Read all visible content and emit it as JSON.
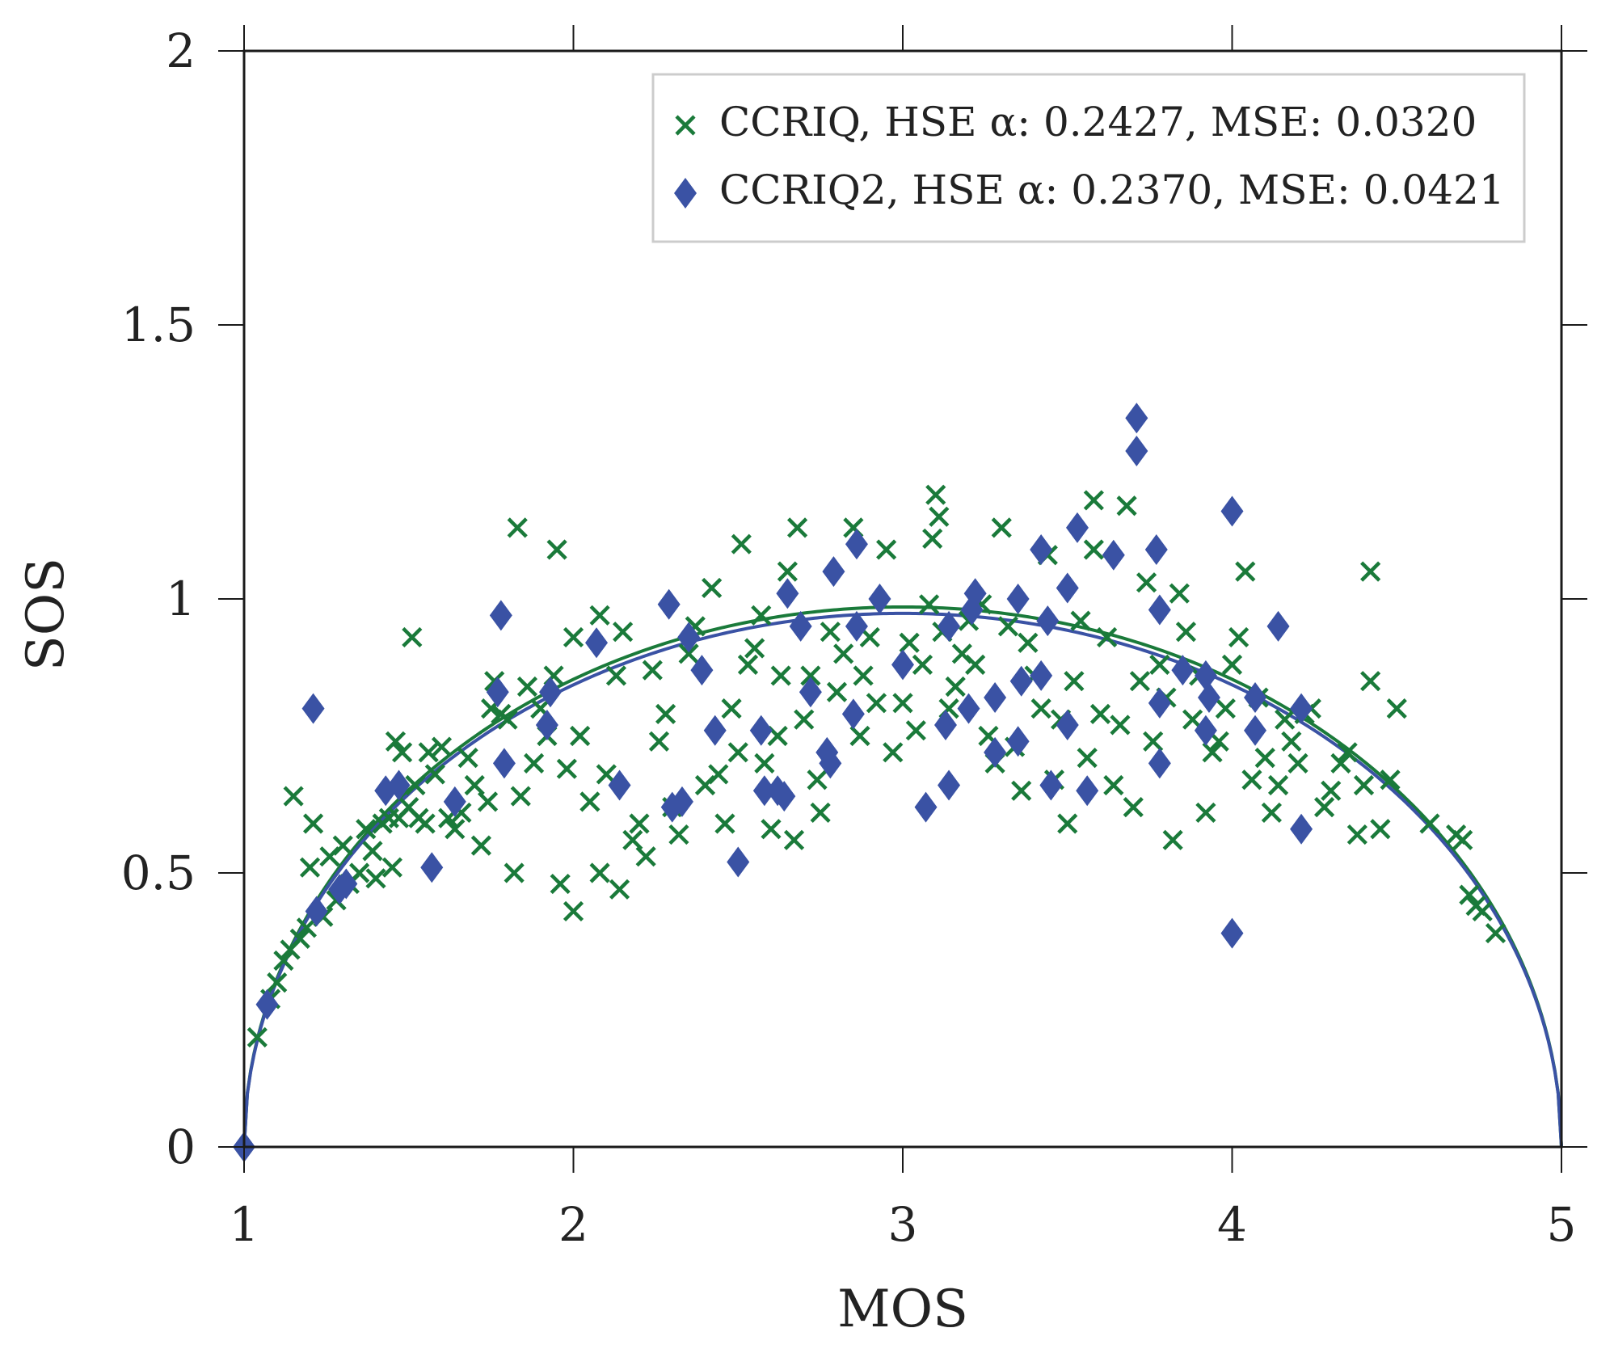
{
  "chart_data": {
    "type": "scatter",
    "title": "",
    "xlabel": "MOS",
    "ylabel": "SOS",
    "xlim": [
      1,
      5
    ],
    "ylim": [
      0,
      2
    ],
    "x_ticks": [
      1,
      2,
      3,
      4,
      5
    ],
    "x_tick_labels": [
      "1",
      "2",
      "3",
      "4",
      "5"
    ],
    "y_ticks": [
      0,
      0.5,
      1,
      1.5,
      2
    ],
    "y_tick_labels": [
      "0",
      "0.5",
      "1",
      "1.5",
      "2"
    ],
    "grid": false,
    "legend_position": "top-right",
    "series": [
      {
        "name": "CCRIQ, HSE α: 0.2427, MSE: 0.0320",
        "legend_label": "CCRIQ, HSE α: 0.2427, MSE: 0.0320",
        "marker": "x",
        "color": "#1a7a3a",
        "fit_alpha": 0.2427,
        "points": [
          [
            1.04,
            0.2
          ],
          [
            1.08,
            0.27
          ],
          [
            1.1,
            0.3
          ],
          [
            1.12,
            0.34
          ],
          [
            1.14,
            0.36
          ],
          [
            1.15,
            0.64
          ],
          [
            1.17,
            0.38
          ],
          [
            1.19,
            0.4
          ],
          [
            1.2,
            0.51
          ],
          [
            1.21,
            0.59
          ],
          [
            1.24,
            0.42
          ],
          [
            1.26,
            0.53
          ],
          [
            1.28,
            0.45
          ],
          [
            1.3,
            0.55
          ],
          [
            1.32,
            0.48
          ],
          [
            1.35,
            0.5
          ],
          [
            1.37,
            0.58
          ],
          [
            1.39,
            0.54
          ],
          [
            1.4,
            0.49
          ],
          [
            1.42,
            0.59
          ],
          [
            1.44,
            0.6
          ],
          [
            1.45,
            0.51
          ],
          [
            1.46,
            0.74
          ],
          [
            1.47,
            0.6
          ],
          [
            1.48,
            0.72
          ],
          [
            1.5,
            0.62
          ],
          [
            1.51,
            0.93
          ],
          [
            1.52,
            0.66
          ],
          [
            1.53,
            0.6
          ],
          [
            1.55,
            0.59
          ],
          [
            1.56,
            0.72
          ],
          [
            1.58,
            0.68
          ],
          [
            1.6,
            0.73
          ],
          [
            1.62,
            0.6
          ],
          [
            1.64,
            0.58
          ],
          [
            1.66,
            0.61
          ],
          [
            1.68,
            0.71
          ],
          [
            1.7,
            0.66
          ],
          [
            1.72,
            0.55
          ],
          [
            1.74,
            0.63
          ],
          [
            1.75,
            0.8
          ],
          [
            1.76,
            0.85
          ],
          [
            1.78,
            0.79
          ],
          [
            1.8,
            0.78
          ],
          [
            1.82,
            0.5
          ],
          [
            1.83,
            1.13
          ],
          [
            1.84,
            0.64
          ],
          [
            1.86,
            0.84
          ],
          [
            1.88,
            0.7
          ],
          [
            1.9,
            0.8
          ],
          [
            1.92,
            0.75
          ],
          [
            1.94,
            0.86
          ],
          [
            1.95,
            1.09
          ],
          [
            1.96,
            0.48
          ],
          [
            1.98,
            0.69
          ],
          [
            2.0,
            0.43
          ],
          [
            2.0,
            0.93
          ],
          [
            2.02,
            0.75
          ],
          [
            2.05,
            0.63
          ],
          [
            2.08,
            0.5
          ],
          [
            2.08,
            0.97
          ],
          [
            2.1,
            0.68
          ],
          [
            2.13,
            0.86
          ],
          [
            2.14,
            0.47
          ],
          [
            2.15,
            0.94
          ],
          [
            2.18,
            0.56
          ],
          [
            2.2,
            0.59
          ],
          [
            2.22,
            0.53
          ],
          [
            2.24,
            0.87
          ],
          [
            2.26,
            0.74
          ],
          [
            2.28,
            0.79
          ],
          [
            2.3,
            0.62
          ],
          [
            2.32,
            0.57
          ],
          [
            2.35,
            0.9
          ],
          [
            2.37,
            0.95
          ],
          [
            2.4,
            0.66
          ],
          [
            2.42,
            1.02
          ],
          [
            2.44,
            0.68
          ],
          [
            2.46,
            0.59
          ],
          [
            2.48,
            0.8
          ],
          [
            2.5,
            0.72
          ],
          [
            2.51,
            1.1
          ],
          [
            2.53,
            0.88
          ],
          [
            2.55,
            0.91
          ],
          [
            2.57,
            0.97
          ],
          [
            2.58,
            0.7
          ],
          [
            2.6,
            0.58
          ],
          [
            2.62,
            0.75
          ],
          [
            2.63,
            0.86
          ],
          [
            2.65,
            1.05
          ],
          [
            2.67,
            0.56
          ],
          [
            2.68,
            1.13
          ],
          [
            2.7,
            0.78
          ],
          [
            2.72,
            0.86
          ],
          [
            2.74,
            0.67
          ],
          [
            2.75,
            0.61
          ],
          [
            2.78,
            0.94
          ],
          [
            2.8,
            0.83
          ],
          [
            2.82,
            0.9
          ],
          [
            2.85,
            1.13
          ],
          [
            2.87,
            0.75
          ],
          [
            2.88,
            0.86
          ],
          [
            2.9,
            0.93
          ],
          [
            2.92,
            0.81
          ],
          [
            2.95,
            1.09
          ],
          [
            2.97,
            0.72
          ],
          [
            3.0,
            0.81
          ],
          [
            3.02,
            0.92
          ],
          [
            3.04,
            0.76
          ],
          [
            3.06,
            0.88
          ],
          [
            3.08,
            0.99
          ],
          [
            3.09,
            1.11
          ],
          [
            3.1,
            1.19
          ],
          [
            3.11,
            1.15
          ],
          [
            3.12,
            0.94
          ],
          [
            3.14,
            0.8
          ],
          [
            3.16,
            0.84
          ],
          [
            3.18,
            0.9
          ],
          [
            3.2,
            0.96
          ],
          [
            3.22,
            0.88
          ],
          [
            3.24,
            0.99
          ],
          [
            3.26,
            0.75
          ],
          [
            3.28,
            0.7
          ],
          [
            3.3,
            1.13
          ],
          [
            3.32,
            0.95
          ],
          [
            3.34,
            0.73
          ],
          [
            3.36,
            0.65
          ],
          [
            3.38,
            0.92
          ],
          [
            3.4,
            0.86
          ],
          [
            3.42,
            0.8
          ],
          [
            3.44,
            1.08
          ],
          [
            3.46,
            0.67
          ],
          [
            3.48,
            0.78
          ],
          [
            3.5,
            0.59
          ],
          [
            3.52,
            0.85
          ],
          [
            3.54,
            0.96
          ],
          [
            3.56,
            0.71
          ],
          [
            3.58,
            1.09
          ],
          [
            3.58,
            1.18
          ],
          [
            3.6,
            0.79
          ],
          [
            3.62,
            0.93
          ],
          [
            3.64,
            0.66
          ],
          [
            3.66,
            0.77
          ],
          [
            3.68,
            1.17
          ],
          [
            3.7,
            0.62
          ],
          [
            3.72,
            0.85
          ],
          [
            3.74,
            1.03
          ],
          [
            3.76,
            0.74
          ],
          [
            3.78,
            0.88
          ],
          [
            3.8,
            0.82
          ],
          [
            3.82,
            0.56
          ],
          [
            3.84,
            1.01
          ],
          [
            3.86,
            0.94
          ],
          [
            3.88,
            0.78
          ],
          [
            3.9,
            0.86
          ],
          [
            3.92,
            0.61
          ],
          [
            3.94,
            0.72
          ],
          [
            3.96,
            0.74
          ],
          [
            3.98,
            0.8
          ],
          [
            4.0,
            0.88
          ],
          [
            4.02,
            0.93
          ],
          [
            4.04,
            1.05
          ],
          [
            4.06,
            0.67
          ],
          [
            4.08,
            0.82
          ],
          [
            4.1,
            0.71
          ],
          [
            4.12,
            0.61
          ],
          [
            4.14,
            0.66
          ],
          [
            4.16,
            0.78
          ],
          [
            4.18,
            0.74
          ],
          [
            4.2,
            0.7
          ],
          [
            4.22,
            0.79
          ],
          [
            4.24,
            0.8
          ],
          [
            4.28,
            0.62
          ],
          [
            4.3,
            0.65
          ],
          [
            4.33,
            0.7
          ],
          [
            4.35,
            0.72
          ],
          [
            4.38,
            0.57
          ],
          [
            4.4,
            0.66
          ],
          [
            4.42,
            1.05
          ],
          [
            4.42,
            0.85
          ],
          [
            4.45,
            0.58
          ],
          [
            4.48,
            0.67
          ],
          [
            4.5,
            0.8
          ],
          [
            4.6,
            0.59
          ],
          [
            4.68,
            0.57
          ],
          [
            4.7,
            0.56
          ],
          [
            4.72,
            0.46
          ],
          [
            4.74,
            0.44
          ],
          [
            4.76,
            0.43
          ],
          [
            4.8,
            0.39
          ]
        ]
      },
      {
        "name": "CCRIQ2, HSE α: 0.2370, MSE: 0.0421",
        "legend_label": "CCRIQ2, HSE α: 0.2370, MSE: 0.0421",
        "marker": "diamond",
        "color": "#3a52a4",
        "fit_alpha": 0.237,
        "points": [
          [
            1.0,
            0.0
          ],
          [
            1.07,
            0.26
          ],
          [
            1.21,
            0.8
          ],
          [
            1.22,
            0.43
          ],
          [
            1.29,
            0.47
          ],
          [
            1.31,
            0.48
          ],
          [
            1.43,
            0.65
          ],
          [
            1.47,
            0.66
          ],
          [
            1.57,
            0.51
          ],
          [
            1.64,
            0.63
          ],
          [
            1.77,
            0.83
          ],
          [
            1.78,
            0.97
          ],
          [
            1.79,
            0.7
          ],
          [
            1.92,
            0.77
          ],
          [
            1.93,
            0.83
          ],
          [
            2.07,
            0.92
          ],
          [
            2.14,
            0.66
          ],
          [
            2.29,
            0.99
          ],
          [
            2.3,
            0.62
          ],
          [
            2.33,
            0.63
          ],
          [
            2.35,
            0.93
          ],
          [
            2.39,
            0.87
          ],
          [
            2.43,
            0.76
          ],
          [
            2.5,
            0.52
          ],
          [
            2.57,
            0.76
          ],
          [
            2.58,
            0.65
          ],
          [
            2.62,
            0.65
          ],
          [
            2.64,
            0.64
          ],
          [
            2.65,
            1.01
          ],
          [
            2.69,
            0.95
          ],
          [
            2.72,
            0.83
          ],
          [
            2.77,
            0.72
          ],
          [
            2.79,
            1.05
          ],
          [
            2.78,
            0.7
          ],
          [
            2.86,
            1.1
          ],
          [
            2.85,
            0.79
          ],
          [
            2.86,
            0.95
          ],
          [
            2.93,
            1.0
          ],
          [
            3.0,
            0.88
          ],
          [
            3.07,
            0.62
          ],
          [
            3.13,
            0.77
          ],
          [
            3.14,
            0.66
          ],
          [
            3.14,
            0.95
          ],
          [
            3.2,
            0.8
          ],
          [
            3.21,
            0.98
          ],
          [
            3.22,
            1.01
          ],
          [
            3.28,
            0.82
          ],
          [
            3.28,
            0.72
          ],
          [
            3.35,
            1.0
          ],
          [
            3.35,
            0.74
          ],
          [
            3.36,
            0.85
          ],
          [
            3.42,
            1.09
          ],
          [
            3.42,
            0.86
          ],
          [
            3.44,
            0.96
          ],
          [
            3.45,
            0.66
          ],
          [
            3.5,
            1.02
          ],
          [
            3.5,
            0.77
          ],
          [
            3.53,
            1.13
          ],
          [
            3.56,
            0.65
          ],
          [
            3.64,
            1.08
          ],
          [
            3.71,
            1.33
          ],
          [
            3.71,
            1.27
          ],
          [
            3.77,
            1.09
          ],
          [
            3.78,
            0.98
          ],
          [
            3.78,
            0.81
          ],
          [
            3.78,
            0.7
          ],
          [
            3.85,
            0.87
          ],
          [
            3.92,
            0.86
          ],
          [
            3.93,
            0.82
          ],
          [
            3.92,
            0.76
          ],
          [
            4.0,
            1.16
          ],
          [
            4.0,
            0.39
          ],
          [
            4.07,
            0.82
          ],
          [
            4.07,
            0.76
          ],
          [
            4.14,
            0.95
          ],
          [
            4.21,
            0.8
          ],
          [
            4.21,
            0.58
          ]
        ]
      }
    ]
  }
}
